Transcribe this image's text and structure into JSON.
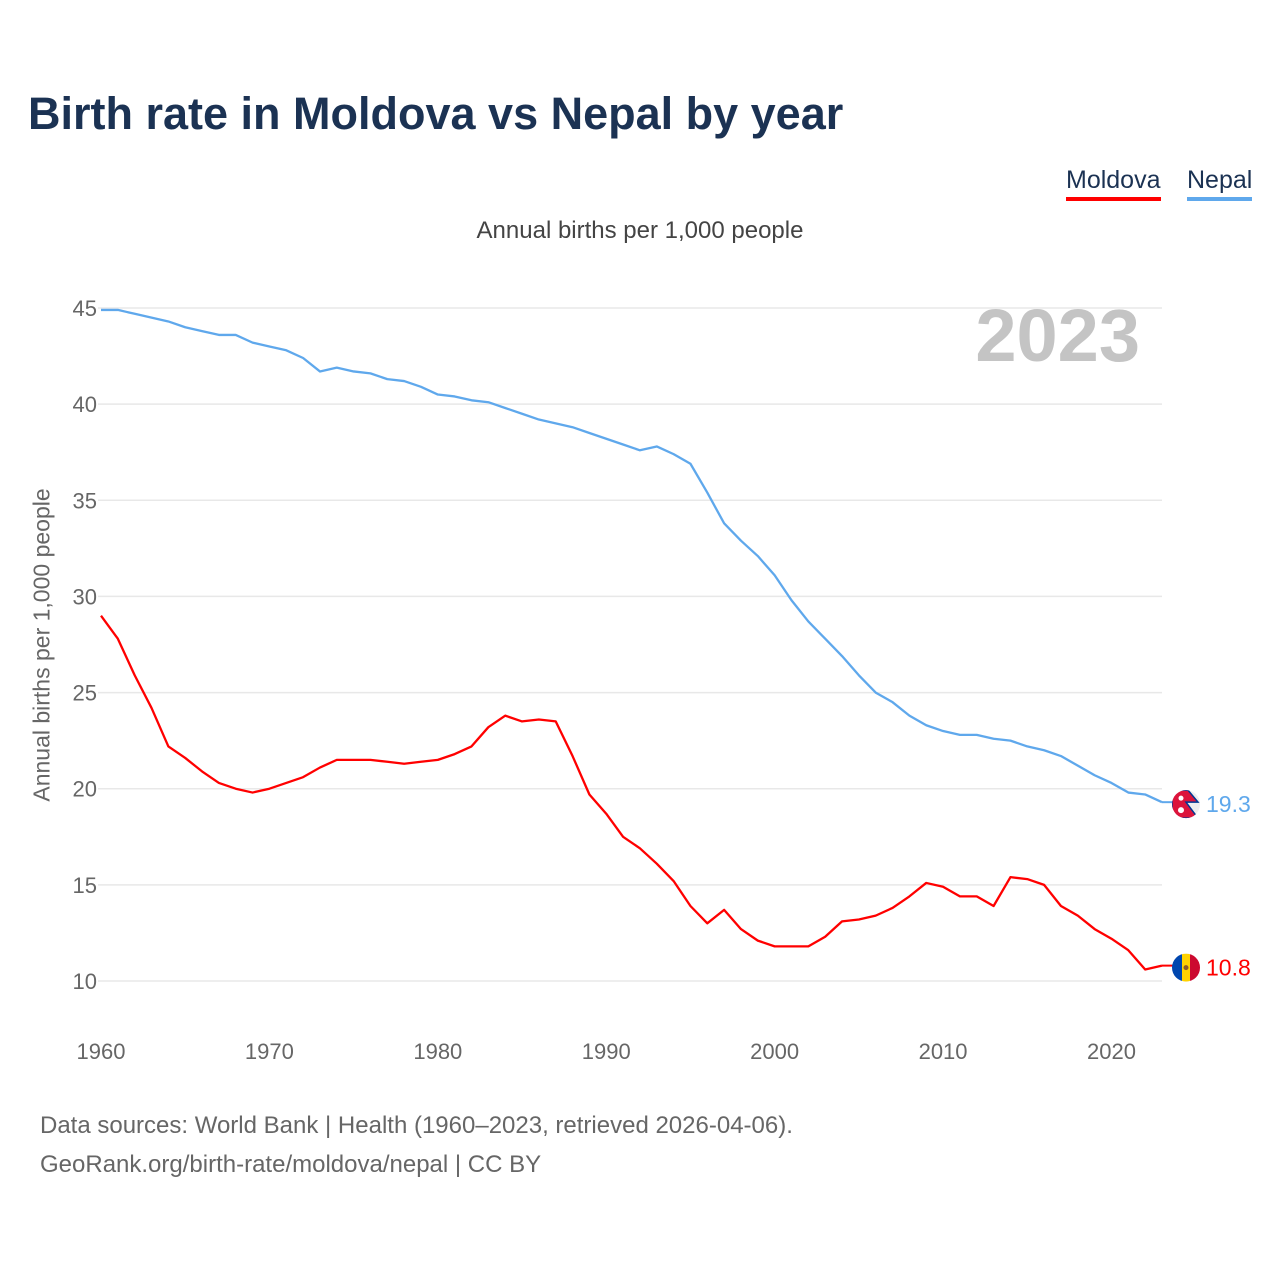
{
  "chart_data": {
    "type": "line",
    "title": "Birth rate in Moldova vs Nepal by year",
    "subtitle": "Annual births per 1,000 people",
    "ylabel": "Annual births per 1,000 people",
    "xlabel": "",
    "year_watermark": "2023",
    "xlim": [
      1960,
      2023
    ],
    "ylim": [
      10,
      45
    ],
    "x_ticks": [
      "1960",
      "1970",
      "1980",
      "1990",
      "2000",
      "2010",
      "2020"
    ],
    "y_ticks": [
      "10",
      "15",
      "20",
      "25",
      "30",
      "35",
      "40",
      "45"
    ],
    "grid": true,
    "legend_placement": "top-right",
    "series": [
      {
        "name": "Moldova",
        "color": "#ff0000",
        "end_label": "10.8",
        "values": [
          29.0,
          27.8,
          25.9,
          24.2,
          22.2,
          21.6,
          20.9,
          20.3,
          20.0,
          19.8,
          20.0,
          20.3,
          20.6,
          21.1,
          21.5,
          21.5,
          21.5,
          21.4,
          21.3,
          21.4,
          21.5,
          21.8,
          22.2,
          23.2,
          23.8,
          23.5,
          23.6,
          23.5,
          21.7,
          19.7,
          18.7,
          17.5,
          16.9,
          16.1,
          15.2,
          13.9,
          13.0,
          13.7,
          12.7,
          12.1,
          11.8,
          11.8,
          11.8,
          12.3,
          13.1,
          13.2,
          13.4,
          13.8,
          14.4,
          15.1,
          14.9,
          14.4,
          14.4,
          13.9,
          15.4,
          15.3,
          15.0,
          13.9,
          13.4,
          12.7,
          12.2,
          11.6,
          10.6,
          10.8
        ]
      },
      {
        "name": "Nepal",
        "color": "#5fa8ec",
        "end_label": "19.3",
        "values": [
          44.9,
          44.9,
          44.7,
          44.5,
          44.3,
          44.0,
          43.8,
          43.6,
          43.6,
          43.2,
          43.0,
          42.8,
          42.4,
          41.7,
          41.9,
          41.7,
          41.6,
          41.3,
          41.2,
          40.9,
          40.5,
          40.4,
          40.2,
          40.1,
          39.8,
          39.5,
          39.2,
          39.0,
          38.8,
          38.5,
          38.2,
          37.9,
          37.6,
          37.8,
          37.4,
          36.9,
          35.4,
          33.8,
          32.9,
          32.1,
          31.1,
          29.8,
          28.7,
          27.8,
          26.9,
          25.9,
          25.0,
          24.5,
          23.8,
          23.3,
          23.0,
          22.8,
          22.8,
          22.6,
          22.5,
          22.2,
          22.0,
          21.7,
          21.2,
          20.7,
          20.3,
          19.8,
          19.7,
          19.3
        ]
      }
    ]
  },
  "source": {
    "line1": "Data sources: World Bank | Health (1960–2023, retrieved 2026-04-06).",
    "line2": "GeoRank.org/birth-rate/moldova/nepal | CC BY"
  }
}
